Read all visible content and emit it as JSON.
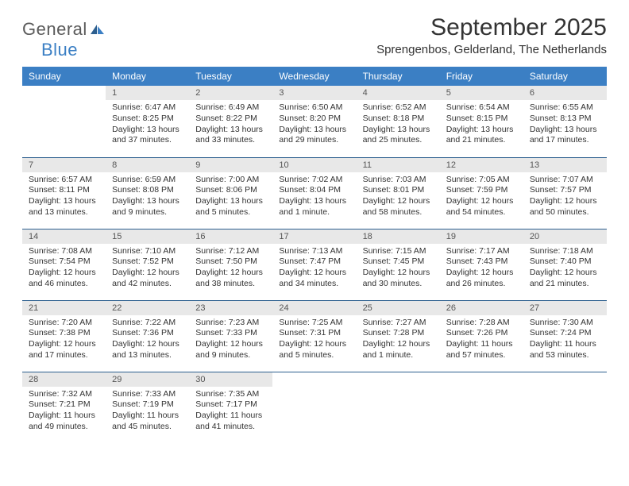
{
  "brand": {
    "word1": "General",
    "word2": "Blue"
  },
  "title": "September 2025",
  "location": "Sprengenbos, Gelderland, The Netherlands",
  "colors": {
    "header_bg": "#3b7fc4",
    "header_text": "#ffffff",
    "daynum_bg": "#e8e8e8",
    "row_border": "#2d5f8f",
    "text": "#333333",
    "logo_gray": "#5a5a5a",
    "logo_blue": "#3b7fc4"
  },
  "typography": {
    "title_fontsize": 30,
    "location_fontsize": 15,
    "header_fontsize": 12,
    "cell_fontsize": 10.5
  },
  "weekdays": [
    "Sunday",
    "Monday",
    "Tuesday",
    "Wednesday",
    "Thursday",
    "Friday",
    "Saturday"
  ],
  "weeks": [
    [
      null,
      {
        "n": "1",
        "sunrise": "6:47 AM",
        "sunset": "8:25 PM",
        "daylight": "13 hours and 37 minutes."
      },
      {
        "n": "2",
        "sunrise": "6:49 AM",
        "sunset": "8:22 PM",
        "daylight": "13 hours and 33 minutes."
      },
      {
        "n": "3",
        "sunrise": "6:50 AM",
        "sunset": "8:20 PM",
        "daylight": "13 hours and 29 minutes."
      },
      {
        "n": "4",
        "sunrise": "6:52 AM",
        "sunset": "8:18 PM",
        "daylight": "13 hours and 25 minutes."
      },
      {
        "n": "5",
        "sunrise": "6:54 AM",
        "sunset": "8:15 PM",
        "daylight": "13 hours and 21 minutes."
      },
      {
        "n": "6",
        "sunrise": "6:55 AM",
        "sunset": "8:13 PM",
        "daylight": "13 hours and 17 minutes."
      }
    ],
    [
      {
        "n": "7",
        "sunrise": "6:57 AM",
        "sunset": "8:11 PM",
        "daylight": "13 hours and 13 minutes."
      },
      {
        "n": "8",
        "sunrise": "6:59 AM",
        "sunset": "8:08 PM",
        "daylight": "13 hours and 9 minutes."
      },
      {
        "n": "9",
        "sunrise": "7:00 AM",
        "sunset": "8:06 PM",
        "daylight": "13 hours and 5 minutes."
      },
      {
        "n": "10",
        "sunrise": "7:02 AM",
        "sunset": "8:04 PM",
        "daylight": "13 hours and 1 minute."
      },
      {
        "n": "11",
        "sunrise": "7:03 AM",
        "sunset": "8:01 PM",
        "daylight": "12 hours and 58 minutes."
      },
      {
        "n": "12",
        "sunrise": "7:05 AM",
        "sunset": "7:59 PM",
        "daylight": "12 hours and 54 minutes."
      },
      {
        "n": "13",
        "sunrise": "7:07 AM",
        "sunset": "7:57 PM",
        "daylight": "12 hours and 50 minutes."
      }
    ],
    [
      {
        "n": "14",
        "sunrise": "7:08 AM",
        "sunset": "7:54 PM",
        "daylight": "12 hours and 46 minutes."
      },
      {
        "n": "15",
        "sunrise": "7:10 AM",
        "sunset": "7:52 PM",
        "daylight": "12 hours and 42 minutes."
      },
      {
        "n": "16",
        "sunrise": "7:12 AM",
        "sunset": "7:50 PM",
        "daylight": "12 hours and 38 minutes."
      },
      {
        "n": "17",
        "sunrise": "7:13 AM",
        "sunset": "7:47 PM",
        "daylight": "12 hours and 34 minutes."
      },
      {
        "n": "18",
        "sunrise": "7:15 AM",
        "sunset": "7:45 PM",
        "daylight": "12 hours and 30 minutes."
      },
      {
        "n": "19",
        "sunrise": "7:17 AM",
        "sunset": "7:43 PM",
        "daylight": "12 hours and 26 minutes."
      },
      {
        "n": "20",
        "sunrise": "7:18 AM",
        "sunset": "7:40 PM",
        "daylight": "12 hours and 21 minutes."
      }
    ],
    [
      {
        "n": "21",
        "sunrise": "7:20 AM",
        "sunset": "7:38 PM",
        "daylight": "12 hours and 17 minutes."
      },
      {
        "n": "22",
        "sunrise": "7:22 AM",
        "sunset": "7:36 PM",
        "daylight": "12 hours and 13 minutes."
      },
      {
        "n": "23",
        "sunrise": "7:23 AM",
        "sunset": "7:33 PM",
        "daylight": "12 hours and 9 minutes."
      },
      {
        "n": "24",
        "sunrise": "7:25 AM",
        "sunset": "7:31 PM",
        "daylight": "12 hours and 5 minutes."
      },
      {
        "n": "25",
        "sunrise": "7:27 AM",
        "sunset": "7:28 PM",
        "daylight": "12 hours and 1 minute."
      },
      {
        "n": "26",
        "sunrise": "7:28 AM",
        "sunset": "7:26 PM",
        "daylight": "11 hours and 57 minutes."
      },
      {
        "n": "27",
        "sunrise": "7:30 AM",
        "sunset": "7:24 PM",
        "daylight": "11 hours and 53 minutes."
      }
    ],
    [
      {
        "n": "28",
        "sunrise": "7:32 AM",
        "sunset": "7:21 PM",
        "daylight": "11 hours and 49 minutes."
      },
      {
        "n": "29",
        "sunrise": "7:33 AM",
        "sunset": "7:19 PM",
        "daylight": "11 hours and 45 minutes."
      },
      {
        "n": "30",
        "sunrise": "7:35 AM",
        "sunset": "7:17 PM",
        "daylight": "11 hours and 41 minutes."
      },
      null,
      null,
      null,
      null
    ]
  ],
  "labels": {
    "sunrise": "Sunrise:",
    "sunset": "Sunset:",
    "daylight": "Daylight:"
  }
}
